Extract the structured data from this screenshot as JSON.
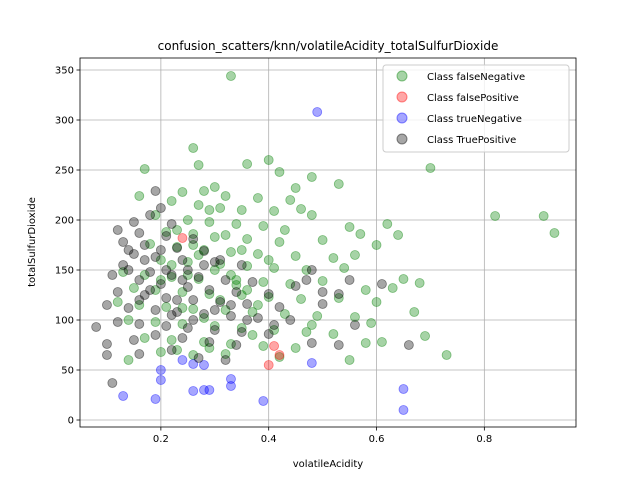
{
  "chart_data": {
    "type": "scatter",
    "title": "confusion_scatters/knn/volatileAcidity_totalSulfurDioxide",
    "xlabel": "volatileAcidity",
    "ylabel": "totalSulfurDioxide",
    "xlim": [
      0.05,
      0.97
    ],
    "ylim": [
      -7,
      362
    ],
    "xticks": [
      0.2,
      0.4,
      0.6,
      0.8
    ],
    "xtick_labels": [
      "0.2",
      "0.4",
      "0.6",
      "0.8"
    ],
    "yticks": [
      0,
      50,
      100,
      150,
      200,
      250,
      300,
      350
    ],
    "ytick_labels": [
      "0",
      "50",
      "100",
      "150",
      "200",
      "250",
      "300",
      "350"
    ],
    "grid": true,
    "legend_position": "top-right",
    "series": [
      {
        "name": "Class falseNegative",
        "color": "#008000",
        "alpha": 0.35,
        "points": [
          [
            0.33,
            344
          ],
          [
            0.26,
            272
          ],
          [
            0.4,
            260
          ],
          [
            0.27,
            255
          ],
          [
            0.36,
            256
          ],
          [
            0.42,
            248
          ],
          [
            0.7,
            252
          ],
          [
            0.17,
            251
          ],
          [
            0.48,
            243
          ],
          [
            0.53,
            236
          ],
          [
            0.3,
            233
          ],
          [
            0.45,
            232
          ],
          [
            0.24,
            228
          ],
          [
            0.28,
            229
          ],
          [
            0.32,
            224
          ],
          [
            0.38,
            222
          ],
          [
            0.16,
            224
          ],
          [
            0.44,
            220
          ],
          [
            0.22,
            219
          ],
          [
            0.27,
            215
          ],
          [
            0.31,
            212
          ],
          [
            0.35,
            210
          ],
          [
            0.41,
            209
          ],
          [
            0.46,
            211
          ],
          [
            0.82,
            204
          ],
          [
            0.91,
            204
          ],
          [
            0.93,
            187
          ],
          [
            0.62,
            196
          ],
          [
            0.48,
            205
          ],
          [
            0.19,
            205
          ],
          [
            0.25,
            200
          ],
          [
            0.29,
            198
          ],
          [
            0.34,
            196
          ],
          [
            0.39,
            194
          ],
          [
            0.43,
            190
          ],
          [
            0.55,
            193
          ],
          [
            0.64,
            185
          ],
          [
            0.57,
            186
          ],
          [
            0.21,
            188
          ],
          [
            0.26,
            186
          ],
          [
            0.3,
            183
          ],
          [
            0.36,
            181
          ],
          [
            0.42,
            178
          ],
          [
            0.5,
            180
          ],
          [
            0.6,
            175
          ],
          [
            0.18,
            176
          ],
          [
            0.23,
            173
          ],
          [
            0.28,
            170
          ],
          [
            0.33,
            168
          ],
          [
            0.38,
            166
          ],
          [
            0.45,
            164
          ],
          [
            0.52,
            162
          ],
          [
            0.56,
            165
          ],
          [
            0.2,
            160
          ],
          [
            0.25,
            158
          ],
          [
            0.31,
            156
          ],
          [
            0.36,
            154
          ],
          [
            0.41,
            152
          ],
          [
            0.47,
            150
          ],
          [
            0.54,
            152
          ],
          [
            0.13,
            148
          ],
          [
            0.17,
            145
          ],
          [
            0.22,
            143
          ],
          [
            0.27,
            141
          ],
          [
            0.34,
            140
          ],
          [
            0.39,
            138
          ],
          [
            0.44,
            136
          ],
          [
            0.5,
            139
          ],
          [
            0.65,
            141
          ],
          [
            0.63,
            132
          ],
          [
            0.58,
            130
          ],
          [
            0.68,
            137
          ],
          [
            0.15,
            132
          ],
          [
            0.19,
            130
          ],
          [
            0.24,
            128
          ],
          [
            0.29,
            126
          ],
          [
            0.35,
            125
          ],
          [
            0.4,
            123
          ],
          [
            0.46,
            121
          ],
          [
            0.53,
            122
          ],
          [
            0.6,
            118
          ],
          [
            0.67,
            108
          ],
          [
            0.12,
            118
          ],
          [
            0.16,
            115
          ],
          [
            0.21,
            113
          ],
          [
            0.26,
            111
          ],
          [
            0.32,
            110
          ],
          [
            0.37,
            108
          ],
          [
            0.43,
            106
          ],
          [
            0.49,
            104
          ],
          [
            0.56,
            103
          ],
          [
            0.59,
            97
          ],
          [
            0.14,
            100
          ],
          [
            0.19,
            98
          ],
          [
            0.24,
            96
          ],
          [
            0.3,
            94
          ],
          [
            0.35,
            92
          ],
          [
            0.41,
            90
          ],
          [
            0.47,
            88
          ],
          [
            0.52,
            86
          ],
          [
            0.61,
            78
          ],
          [
            0.69,
            84
          ],
          [
            0.17,
            82
          ],
          [
            0.22,
            80
          ],
          [
            0.28,
            78
          ],
          [
            0.33,
            76
          ],
          [
            0.39,
            74
          ],
          [
            0.45,
            72
          ],
          [
            0.58,
            77
          ],
          [
            0.73,
            65
          ],
          [
            0.2,
            68
          ],
          [
            0.26,
            65
          ],
          [
            0.32,
            66
          ],
          [
            0.42,
            63
          ],
          [
            0.55,
            60
          ],
          [
            0.14,
            60
          ],
          [
            0.23,
            70
          ],
          [
            0.29,
            72
          ],
          [
            0.37,
            85
          ],
          [
            0.48,
            95
          ],
          [
            0.25,
            145
          ],
          [
            0.3,
            150
          ],
          [
            0.34,
            135
          ],
          [
            0.22,
            155
          ],
          [
            0.27,
            165
          ],
          [
            0.31,
            120
          ],
          [
            0.36,
            130
          ],
          [
            0.2,
            140
          ],
          [
            0.24,
            112
          ],
          [
            0.28,
            102
          ],
          [
            0.33,
            145
          ],
          [
            0.38,
            115
          ],
          [
            0.26,
            175
          ],
          [
            0.23,
            190
          ],
          [
            0.29,
            210
          ],
          [
            0.32,
            185
          ],
          [
            0.35,
            170
          ],
          [
            0.4,
            160
          ]
        ]
      },
      {
        "name": "Class falsePositive",
        "color": "#ff0000",
        "alpha": 0.35,
        "points": [
          [
            0.24,
            182
          ],
          [
            0.41,
            74
          ],
          [
            0.42,
            65
          ],
          [
            0.4,
            55
          ]
        ]
      },
      {
        "name": "Class trueNegative",
        "color": "#0000ff",
        "alpha": 0.35,
        "points": [
          [
            0.49,
            308
          ],
          [
            0.2,
            50
          ],
          [
            0.2,
            40
          ],
          [
            0.24,
            60
          ],
          [
            0.26,
            56
          ],
          [
            0.28,
            55
          ],
          [
            0.26,
            29
          ],
          [
            0.28,
            30
          ],
          [
            0.29,
            30
          ],
          [
            0.33,
            41
          ],
          [
            0.33,
            34
          ],
          [
            0.13,
            24
          ],
          [
            0.19,
            21
          ],
          [
            0.39,
            19
          ],
          [
            0.48,
            57
          ],
          [
            0.65,
            31
          ],
          [
            0.65,
            10
          ]
        ]
      },
      {
        "name": "Class TruePositive",
        "color": "#000000",
        "alpha": 0.35,
        "points": [
          [
            0.19,
            229
          ],
          [
            0.2,
            212
          ],
          [
            0.18,
            205
          ],
          [
            0.15,
            198
          ],
          [
            0.22,
            196
          ],
          [
            0.12,
            190
          ],
          [
            0.16,
            187
          ],
          [
            0.21,
            184
          ],
          [
            0.26,
            181
          ],
          [
            0.13,
            178
          ],
          [
            0.17,
            175
          ],
          [
            0.23,
            172
          ],
          [
            0.28,
            169
          ],
          [
            0.15,
            166
          ],
          [
            0.19,
            163
          ],
          [
            0.24,
            160
          ],
          [
            0.3,
            158
          ],
          [
            0.35,
            155
          ],
          [
            0.14,
            150
          ],
          [
            0.18,
            148
          ],
          [
            0.22,
            145
          ],
          [
            0.27,
            143
          ],
          [
            0.32,
            140
          ],
          [
            0.37,
            138
          ],
          [
            0.11,
            145
          ],
          [
            0.16,
            140
          ],
          [
            0.2,
            136
          ],
          [
            0.25,
            133
          ],
          [
            0.29,
            130
          ],
          [
            0.34,
            128
          ],
          [
            0.4,
            126
          ],
          [
            0.45,
            134
          ],
          [
            0.5,
            128
          ],
          [
            0.12,
            128
          ],
          [
            0.17,
            125
          ],
          [
            0.21,
            122
          ],
          [
            0.26,
            120
          ],
          [
            0.31,
            118
          ],
          [
            0.36,
            116
          ],
          [
            0.42,
            113
          ],
          [
            0.1,
            115
          ],
          [
            0.14,
            112
          ],
          [
            0.19,
            110
          ],
          [
            0.23,
            108
          ],
          [
            0.28,
            106
          ],
          [
            0.33,
            104
          ],
          [
            0.38,
            102
          ],
          [
            0.44,
            100
          ],
          [
            0.08,
            93
          ],
          [
            0.12,
            98
          ],
          [
            0.16,
            96
          ],
          [
            0.21,
            94
          ],
          [
            0.25,
            92
          ],
          [
            0.3,
            90
          ],
          [
            0.35,
            88
          ],
          [
            0.4,
            86
          ],
          [
            0.1,
            76
          ],
          [
            0.15,
            80
          ],
          [
            0.19,
            85
          ],
          [
            0.24,
            82
          ],
          [
            0.29,
            78
          ],
          [
            0.34,
            75
          ],
          [
            0.48,
            77
          ],
          [
            0.53,
            75
          ],
          [
            0.1,
            65
          ],
          [
            0.16,
            66
          ],
          [
            0.22,
            70
          ],
          [
            0.27,
            62
          ],
          [
            0.32,
            60
          ],
          [
            0.11,
            37
          ],
          [
            0.56,
            95
          ],
          [
            0.5,
            116
          ],
          [
            0.48,
            150
          ],
          [
            0.47,
            140
          ],
          [
            0.55,
            140
          ],
          [
            0.61,
            136
          ],
          [
            0.53,
            126
          ],
          [
            0.66,
            75
          ],
          [
            0.41,
            95
          ],
          [
            0.36,
            100
          ],
          [
            0.25,
            150
          ],
          [
            0.28,
            155
          ],
          [
            0.31,
            160
          ],
          [
            0.23,
            120
          ],
          [
            0.2,
            170
          ],
          [
            0.18,
            130
          ],
          [
            0.26,
            100
          ],
          [
            0.3,
            110
          ],
          [
            0.33,
            115
          ],
          [
            0.22,
            105
          ],
          [
            0.17,
            160
          ],
          [
            0.14,
            170
          ],
          [
            0.13,
            155
          ],
          [
            0.16,
            120
          ],
          [
            0.21,
            150
          ],
          [
            0.24,
            140
          ]
        ]
      }
    ]
  }
}
